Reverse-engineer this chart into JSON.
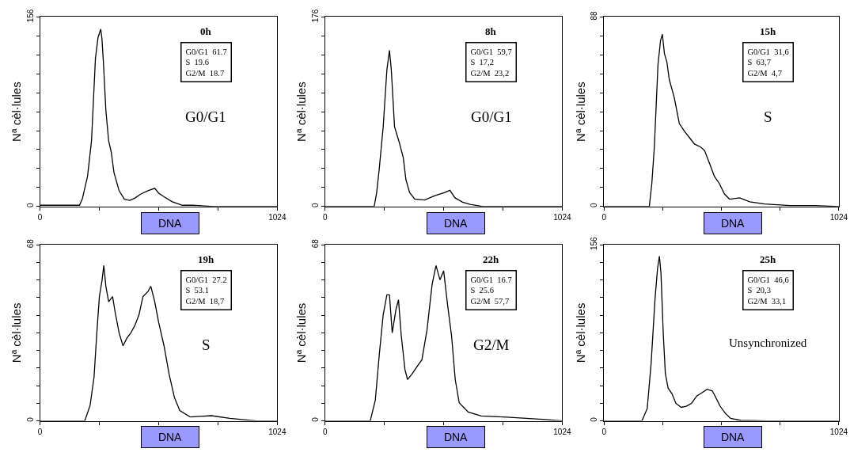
{
  "chart_data": [
    {
      "type": "line",
      "title": "0h",
      "xlabel": "DNA",
      "ylabel": "Nª cèl·lules",
      "xlim": [
        0,
        1024
      ],
      "ylim": [
        0,
        156
      ],
      "xticks": [
        0,
        {
          "value": 256,
          "label": null
        },
        {
          "value": 512,
          "label": null
        },
        {
          "value": 768,
          "label": null
        },
        1024
      ],
      "yticks": [
        0,
        {
          "value": 15.6,
          "label": null
        },
        {
          "value": 31.2,
          "label": null
        },
        {
          "value": 46.8,
          "label": null
        },
        {
          "value": 62.4,
          "label": null
        },
        {
          "value": 78,
          "label": null
        },
        {
          "value": 93.6,
          "label": null
        },
        {
          "value": 109.2,
          "label": null
        },
        {
          "value": 124.8,
          "label": null
        },
        {
          "value": 140.4,
          "label": null
        },
        156
      ],
      "marker": "none",
      "line_style": "solid",
      "annotations": [
        "G0/G1  61.7\nS  19.6\nG2/M  18.7",
        "G0/G1"
      ],
      "series": [
        {
          "color": "#000000",
          "x": [
            0,
            170,
            182,
            205,
            222,
            239,
            250,
            262,
            267,
            273,
            284,
            296,
            307,
            319,
            341,
            364,
            387,
            410,
            432,
            466,
            495,
            512,
            535,
            569,
            614,
            660,
            751,
            978,
            1024
          ],
          "values": [
            1,
            1,
            6,
            25,
            54,
            122,
            139,
            146,
            138,
            120,
            79,
            54,
            45,
            28,
            13,
            6,
            5,
            7,
            10,
            13,
            15,
            11,
            8,
            4,
            1,
            1,
            0,
            0,
            0
          ]
        }
      ]
    },
    {
      "type": "line",
      "title": "8h",
      "xlabel": "DNA",
      "ylabel": "Nª cèl·lules",
      "xlim": [
        0,
        1024
      ],
      "ylim": [
        0,
        176
      ],
      "xticks": [
        0,
        {
          "value": 256,
          "label": null
        },
        {
          "value": 512,
          "label": null
        },
        {
          "value": 768,
          "label": null
        },
        1024
      ],
      "yticks": [
        0,
        {
          "value": 17.6,
          "label": null
        },
        {
          "value": 35.2,
          "label": null
        },
        {
          "value": 52.8,
          "label": null
        },
        {
          "value": 70.4,
          "label": null
        },
        {
          "value": 88,
          "label": null
        },
        {
          "value": 105.6,
          "label": null
        },
        {
          "value": 123.2,
          "label": null
        },
        {
          "value": 140.8,
          "label": null
        },
        {
          "value": 158.4,
          "label": null
        },
        176
      ],
      "marker": "none",
      "line_style": "solid",
      "annotations": [
        "G0/G1  59,7\nS  17,2\nG2/M  23,2",
        "G0/G1"
      ],
      "series": [
        {
          "color": "#000000",
          "x": [
            0,
            212,
            223,
            234,
            251,
            267,
            278,
            286,
            300,
            321,
            338,
            349,
            365,
            387,
            430,
            474,
            517,
            539,
            561,
            594,
            626,
            681,
            1024
          ],
          "values": [
            0,
            0,
            13,
            35,
            74,
            127,
            145,
            127,
            74,
            59,
            45,
            25,
            13,
            7,
            6,
            10,
            13,
            15,
            8,
            4,
            2,
            0,
            0
          ]
        }
      ]
    },
    {
      "type": "line",
      "title": "15h",
      "xlabel": "DNA",
      "ylabel": "Nª cèl·lules",
      "xlim": [
        0,
        1024
      ],
      "ylim": [
        0,
        88
      ],
      "xticks": [
        0,
        {
          "value": 256,
          "label": null
        },
        {
          "value": 512,
          "label": null
        },
        {
          "value": 768,
          "label": null
        },
        1024
      ],
      "yticks": [
        0,
        {
          "value": 8.8,
          "label": null
        },
        {
          "value": 17.6,
          "label": null
        },
        {
          "value": 26.4,
          "label": null
        },
        {
          "value": 35.2,
          "label": null
        },
        {
          "value": 44,
          "label": null
        },
        {
          "value": 52.8,
          "label": null
        },
        {
          "value": 61.6,
          "label": null
        },
        {
          "value": 70.4,
          "label": null
        },
        {
          "value": 79.2,
          "label": null
        },
        88
      ],
      "marker": "none",
      "line_style": "solid",
      "annotations": [
        "G0/G1  31,6\nS  63,7\nG2/M  4,7",
        "S"
      ],
      "series": [
        {
          "color": "#000000",
          "x": [
            0,
            197,
            208,
            219,
            235,
            246,
            254,
            263,
            274,
            284,
            306,
            328,
            350,
            372,
            394,
            421,
            438,
            460,
            481,
            503,
            525,
            547,
            591,
            635,
            700,
            810,
            919,
            1024
          ],
          "values": [
            0,
            0,
            10.6,
            27.6,
            66,
            77,
            80,
            71,
            67,
            59,
            50.5,
            38.5,
            35,
            32,
            29,
            27.6,
            26,
            20,
            14,
            10.6,
            5.8,
            3.4,
            4,
            2.2,
            1.2,
            0.4,
            0.4,
            0
          ]
        }
      ]
    },
    {
      "type": "line",
      "title": "19h",
      "xlabel": "DNA",
      "ylabel": "Nª cèl·lules",
      "xlim": [
        0,
        1024
      ],
      "ylim": [
        0,
        68
      ],
      "xticks": [
        0,
        {
          "value": 256,
          "label": null
        },
        {
          "value": 512,
          "label": null
        },
        {
          "value": 768,
          "label": null
        },
        1024
      ],
      "yticks": [
        0,
        {
          "value": 6.8,
          "label": null
        },
        {
          "value": 13.6,
          "label": null
        },
        {
          "value": 20.4,
          "label": null
        },
        {
          "value": 27.2,
          "label": null
        },
        {
          "value": 34,
          "label": null
        },
        {
          "value": 40.8,
          "label": null
        },
        {
          "value": 47.6,
          "label": null
        },
        {
          "value": 54.4,
          "label": null
        },
        {
          "value": 61.2,
          "label": null
        },
        68
      ],
      "marker": "none",
      "line_style": "solid",
      "annotations": [
        "G0/G1  27.2\nS  53.1\nG2/M  18,7",
        "S"
      ],
      "series": [
        {
          "color": "#000000",
          "x": [
            0,
            193,
            216,
            233,
            245,
            256,
            267,
            275,
            284,
            296,
            313,
            324,
            341,
            358,
            375,
            392,
            410,
            427,
            444,
            466,
            478,
            495,
            512,
            535,
            557,
            580,
            603,
            648,
            739,
            819,
            933,
            1024
          ],
          "values": [
            0,
            0,
            6,
            17,
            34,
            48,
            54,
            60,
            52,
            46,
            48,
            42,
            34,
            29,
            32,
            34,
            37,
            41,
            48,
            50,
            52,
            46,
            38,
            29,
            18,
            9,
            4,
            1.5,
            2,
            1,
            0,
            0
          ]
        }
      ]
    },
    {
      "type": "line",
      "title": "22h",
      "xlabel": "DNA",
      "ylabel": "Nª cèl·lules",
      "xlim": [
        0,
        1024
      ],
      "ylim": [
        0,
        68
      ],
      "xticks": [
        0,
        {
          "value": 256,
          "label": null
        },
        {
          "value": 512,
          "label": null
        },
        {
          "value": 768,
          "label": null
        },
        1024
      ],
      "yticks": [
        0,
        {
          "value": 6.8,
          "label": null
        },
        {
          "value": 13.6,
          "label": null
        },
        {
          "value": 20.4,
          "label": null
        },
        {
          "value": 27.2,
          "label": null
        },
        {
          "value": 34,
          "label": null
        },
        {
          "value": 40.8,
          "label": null
        },
        {
          "value": 47.6,
          "label": null
        },
        {
          "value": 54.4,
          "label": null
        },
        {
          "value": 61.2,
          "label": null
        },
        68
      ],
      "marker": "none",
      "line_style": "solid",
      "annotations": [
        "G0/G1  16.7\nS  25.6\nG2/M  57,7",
        "G2/M"
      ],
      "series": [
        {
          "color": "#000000",
          "x": [
            0,
            195,
            217,
            234,
            251,
            267,
            278,
            290,
            306,
            317,
            329,
            345,
            356,
            373,
            395,
            418,
            440,
            462,
            479,
            496,
            512,
            529,
            546,
            562,
            579,
            618,
            674,
            785,
            952,
            1024
          ],
          "values": [
            0,
            0,
            8,
            25.5,
            41,
            48.7,
            48.7,
            34,
            43,
            46.8,
            33,
            19.8,
            16,
            17.8,
            20.7,
            23.6,
            35,
            52.6,
            60,
            54.5,
            58,
            44.8,
            33,
            16,
            7,
            3.4,
            1.9,
            1.4,
            0.5,
            0
          ]
        }
      ]
    },
    {
      "type": "line",
      "title": "25h",
      "xlabel": "DNA",
      "ylabel": "Nª cèl·lules",
      "xlim": [
        0,
        1024
      ],
      "ylim": [
        0,
        156
      ],
      "xticks": [
        0,
        {
          "value": 256,
          "label": null
        },
        {
          "value": 512,
          "label": null
        },
        {
          "value": 768,
          "label": null
        },
        1024
      ],
      "yticks": [
        0,
        {
          "value": 15.6,
          "label": null
        },
        {
          "value": 31.2,
          "label": null
        },
        {
          "value": 46.8,
          "label": null
        },
        {
          "value": 62.4,
          "label": null
        },
        {
          "value": 78,
          "label": null
        },
        {
          "value": 93.6,
          "label": null
        },
        {
          "value": 109.2,
          "label": null
        },
        {
          "value": 124.8,
          "label": null
        },
        {
          "value": 140.4,
          "label": null
        },
        156
      ],
      "marker": "none",
      "line_style": "solid",
      "annotations": [
        "G0/G1  46,6\nS  20,3\nG2/M  33,1",
        "Unsynchronized"
      ],
      "series": [
        {
          "color": "#000000",
          "x": [
            0,
            165,
            188,
            205,
            222,
            233,
            241,
            248,
            258,
            267,
            279,
            296,
            313,
            336,
            358,
            381,
            404,
            427,
            449,
            472,
            484,
            506,
            529,
            552,
            597,
            711,
            939,
            1024
          ],
          "values": [
            0,
            0,
            11,
            51,
            108,
            135,
            146,
            131,
            77,
            42,
            29,
            24,
            15.5,
            12,
            13,
            15.5,
            22,
            25,
            28,
            26.5,
            22,
            13,
            6.6,
            2.2,
            0.4,
            0,
            0,
            0
          ]
        }
      ]
    }
  ]
}
